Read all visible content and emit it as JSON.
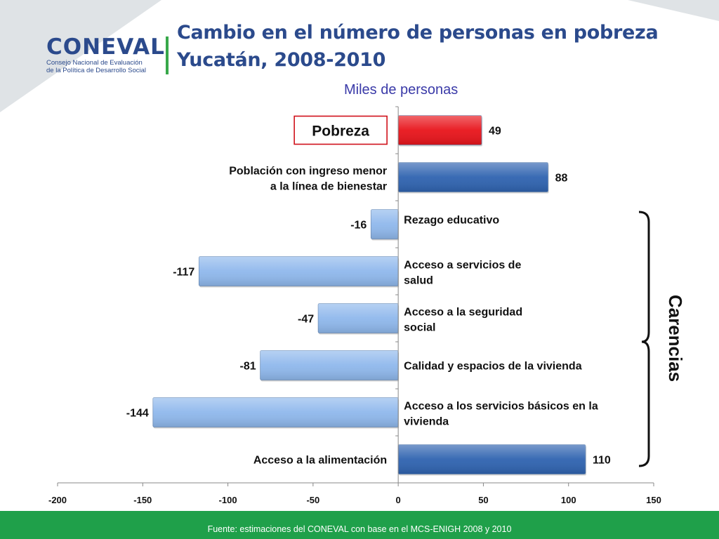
{
  "header": {
    "logo_word": "CONEVAL",
    "logo_sub1": "Consejo Nacional de Evaluación",
    "logo_sub2": "de la Política de Desarrollo Social",
    "title_line1": "Cambio en el número de personas en pobreza",
    "title_line2": "Yucatán, 2008-2010",
    "unit_label": "Miles de personas"
  },
  "chart_data": {
    "type": "bar",
    "orientation": "horizontal",
    "categories": [
      "Pobreza",
      "Población con ingreso menor a la línea de bienestar",
      "Rezago educativo",
      "Acceso a servicios de salud",
      "Acceso a  la seguridad social",
      "Calidad y espacios de la vivienda",
      "Acceso a los servicios básicos en la vivienda",
      "Acceso a la alimentación"
    ],
    "values": [
      49,
      88,
      -16,
      -117,
      -47,
      -81,
      -144,
      110
    ],
    "value_labels": [
      "49",
      "88",
      "-16",
      "-117",
      "-47",
      "-81",
      "-144",
      "110"
    ],
    "bar_colors": [
      "#e8141b",
      "#2f63b0",
      "#8fb8ec",
      "#8fb8ec",
      "#8fb8ec",
      "#8fb8ec",
      "#8fb8ec",
      "#2f63b0"
    ],
    "category_label_lines": [
      [
        "Pobreza"
      ],
      [
        "Población con ingreso menor",
        "a la línea de bienestar"
      ],
      [
        "Rezago educativo"
      ],
      [
        "Acceso a servicios de",
        "salud"
      ],
      [
        "Acceso a  la seguridad",
        "social"
      ],
      [
        "Calidad y espacios de la vivienda"
      ],
      [
        "Acceso a los servicios básicos en la",
        "vivienda"
      ],
      [
        "Acceso a la alimentación"
      ]
    ],
    "xlim": [
      -200,
      150
    ],
    "x_ticks": [
      -200,
      -150,
      -100,
      -50,
      0,
      50,
      100,
      150
    ],
    "x_tick_labels": [
      "-200",
      "-150",
      "-100",
      "-50",
      "0",
      "50",
      "100",
      "150"
    ],
    "grid": false,
    "bracket_label": "Carencias",
    "bracket_categories": [
      "Rezago educativo",
      "Acceso a servicios de salud",
      "Acceso a  la seguridad social",
      "Calidad y espacios de la vivienda",
      "Acceso a los servicios básicos en la vivienda",
      "Acceso a la alimentación"
    ]
  },
  "footer": {
    "source": "Fuente: estimaciones del CONEVAL con base en el MCS-ENIGH 2008 y 2010"
  },
  "colors": {
    "title": "#2b4a8c",
    "unit_label": "#3a3aa8",
    "footer_bg": "#1fa04a",
    "poverty_box_border": "#d0101a"
  }
}
